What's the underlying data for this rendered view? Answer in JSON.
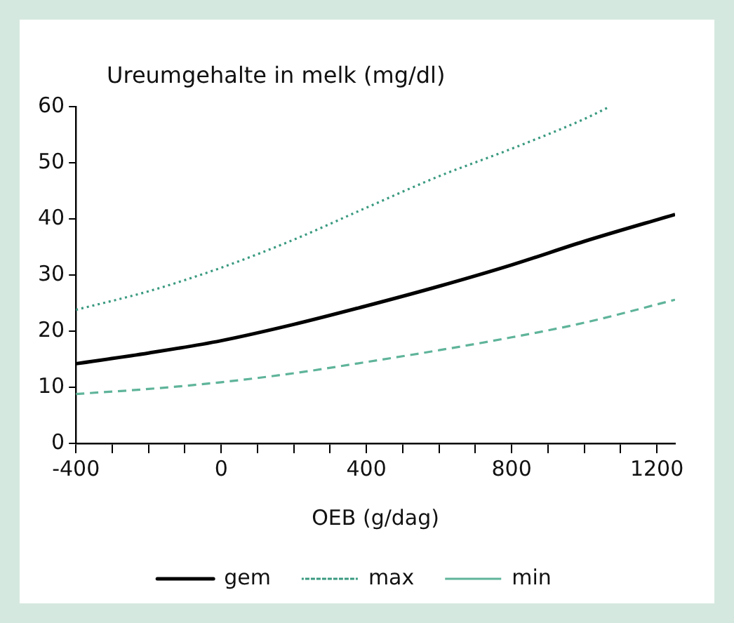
{
  "chart_data": {
    "type": "line",
    "title": "Ureumgehalte in melk (mg/dl)",
    "xlabel": "OEB (g/dag)",
    "xlim": [
      -400,
      1250
    ],
    "xticks": [
      -400,
      {
        "value": -300,
        "label": null
      },
      {
        "value": -200,
        "label": null
      },
      {
        "value": -100,
        "label": null
      },
      0,
      {
        "value": 100,
        "label": null
      },
      {
        "value": 200,
        "label": null
      },
      {
        "value": 300,
        "label": null
      },
      400,
      {
        "value": 500,
        "label": null
      },
      {
        "value": 600,
        "label": null
      },
      {
        "value": 700,
        "label": null
      },
      800,
      {
        "value": 900,
        "label": null
      },
      {
        "value": 1000,
        "label": null
      },
      {
        "value": 1100,
        "label": null
      },
      1200
    ],
    "ylim": [
      0,
      60
    ],
    "yticks": [
      0,
      10,
      20,
      30,
      40,
      50,
      60
    ],
    "grid": false,
    "legend": "bottom",
    "marker": "none",
    "series": [
      {
        "name": "gem",
        "color": "#000000",
        "line_style": "solid",
        "x": [
          -400,
          -200,
          0,
          200,
          400,
          600,
          800,
          1000,
          1250
        ],
        "values": [
          14.2,
          16.1,
          18.3,
          21.2,
          24.5,
          28,
          31.8,
          36,
          40.8
        ]
      },
      {
        "name": "max",
        "color": "#3a9a80",
        "line_style": "dotted",
        "x": [
          -400,
          -200,
          0,
          200,
          400,
          600,
          800,
          1000,
          1070
        ],
        "values": [
          23.8,
          27.1,
          31.3,
          36.3,
          42,
          47.6,
          52.5,
          57.8,
          60
        ]
      },
      {
        "name": "min",
        "color": "#5fb49a",
        "line_style": "dashed",
        "x": [
          -400,
          -200,
          0,
          200,
          400,
          600,
          800,
          1000,
          1250
        ],
        "values": [
          8.8,
          9.7,
          10.9,
          12.5,
          14.5,
          16.6,
          18.9,
          21.5,
          25.6
        ]
      }
    ]
  }
}
